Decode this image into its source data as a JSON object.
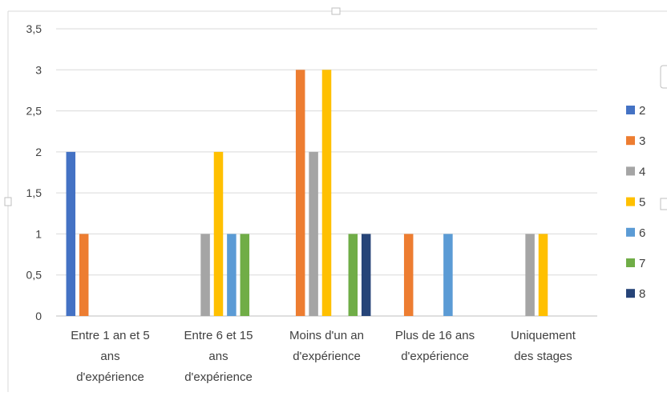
{
  "chart_data": {
    "type": "bar",
    "categories": [
      [
        "Entre 1 an et 5",
        "ans",
        "d'expérience"
      ],
      [
        "Entre 6 et 15",
        "ans",
        "d'expérience"
      ],
      [
        "Moins d'un an",
        "d'expérience"
      ],
      [
        "Plus de 16 ans",
        "d'expérience"
      ],
      [
        "Uniquement",
        "des stages"
      ]
    ],
    "series": [
      {
        "name": "2",
        "color": "#4472C4",
        "values": [
          2,
          0,
          0,
          0,
          0
        ]
      },
      {
        "name": "3",
        "color": "#ED7D31",
        "values": [
          1,
          0,
          3,
          1,
          0
        ]
      },
      {
        "name": "4",
        "color": "#A5A5A5",
        "values": [
          0,
          1,
          2,
          0,
          1
        ]
      },
      {
        "name": "5",
        "color": "#FFC000",
        "values": [
          0,
          2,
          3,
          0,
          1
        ]
      },
      {
        "name": "6",
        "color": "#5B9BD5",
        "values": [
          0,
          1,
          0,
          1,
          0
        ]
      },
      {
        "name": "7",
        "color": "#70AD47",
        "values": [
          0,
          1,
          1,
          0,
          0
        ]
      },
      {
        "name": "8",
        "color": "#264478",
        "values": [
          0,
          0,
          1,
          0,
          0
        ]
      }
    ],
    "ylim": [
      0,
      3.5
    ],
    "yticks": [
      "0",
      "0,5",
      "1",
      "1,5",
      "2",
      "2,5",
      "3",
      "3,5"
    ],
    "grid": true,
    "legend_position": "right"
  }
}
